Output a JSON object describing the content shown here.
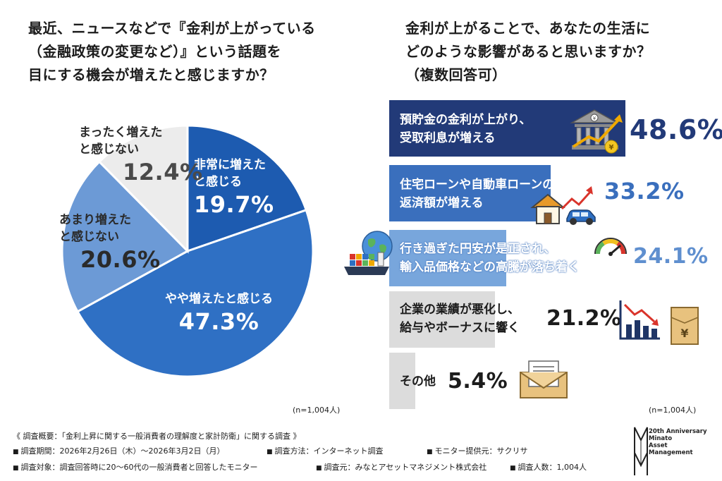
{
  "left_question": {
    "lines": [
      "最近、ニュースなどで『金利が上がっている",
      "（金融政策の変更など）』という話題を",
      "目にする機会が増えたと感じますか？"
    ]
  },
  "right_question": {
    "lines": [
      "金利が上がることで、あなたの生活に",
      "どのような影響があると思いますか？",
      "（複数回答可）"
    ]
  },
  "chart_data": [
    {
      "type": "pie",
      "slices": [
        {
          "label": "非常に増えたと感じる",
          "value": 19.7,
          "value_text": "19.7%",
          "color": "#1d5bb0"
        },
        {
          "label": "やや増えたと感じる",
          "value": 47.3,
          "value_text": "47.3%",
          "color": "#2f70c4"
        },
        {
          "label": "あまり増えたと感じない",
          "value": 20.6,
          "value_text": "20.6%",
          "color": "#6c9ad6"
        },
        {
          "label": "まったく増えたと感じない",
          "value": 12.4,
          "value_text": "12.4%",
          "color": "#ececec"
        }
      ],
      "note": "(n=1,004人)"
    },
    {
      "type": "bar",
      "orientation": "horizontal",
      "categories": [
        "預貯金の金利が上がり、受取利息が増える",
        "住宅ローンや自動車ローンの返済額が増える",
        "行き過ぎた円安が是正され、輸入品価格などの高騰が落ち着く",
        "企業の業績が悪化し、給与やボーナスに響く",
        "その他"
      ],
      "values": [
        48.6,
        33.2,
        24.1,
        21.2,
        5.4
      ],
      "value_texts": [
        "48.6%",
        "33.2%",
        "24.1%",
        "21.2%",
        "5.4%"
      ],
      "colors": [
        "#223a78",
        "#3a6fbd",
        "#78a6dc",
        "#dcdcdc",
        "#dcdcdc"
      ],
      "note": "(n=1,004人)"
    }
  ],
  "bars_text": [
    {
      "line1": "預貯金の金利が上がり、",
      "line2": "受取利息が増える"
    },
    {
      "line1": "住宅ローンや自動車ローンの",
      "line2": "返済額が増える"
    },
    {
      "line1": "行き過ぎた円安が是正され、",
      "line2": "輸入品価格などの高騰が落ち着く"
    },
    {
      "line1": "企業の業績が悪化し、",
      "line2": "給与やボーナスに響く"
    },
    {
      "line1": "その他",
      "line2": ""
    }
  ],
  "icons": [
    "bank-icon",
    "house-icon",
    "car-icon",
    "globe-icon",
    "cargo-ship-icon",
    "gauge-icon",
    "declining-chart-icon",
    "yen-envelope-icon",
    "mail-envelope-icon"
  ],
  "footer": {
    "title": "《 調査概要：「金利上昇に関する一般消費者の理解度と家計防衛」に関する調査 》",
    "period": "調査期間：2026年2月26日（木）～2026年3月2日（月）",
    "method": "調査方法：インターネット調査",
    "monitor": "モニター提供元：サクリサ",
    "target": "調査対象：調査回答時に20～60代の一般消費者と回答したモニター",
    "source": "調査元：みなとアセットマネジメント株式会社",
    "count": "調査人数：1,004人"
  },
  "logo": {
    "lines": [
      "20th Anniversary",
      "Minato",
      "Asset",
      "Management"
    ]
  }
}
